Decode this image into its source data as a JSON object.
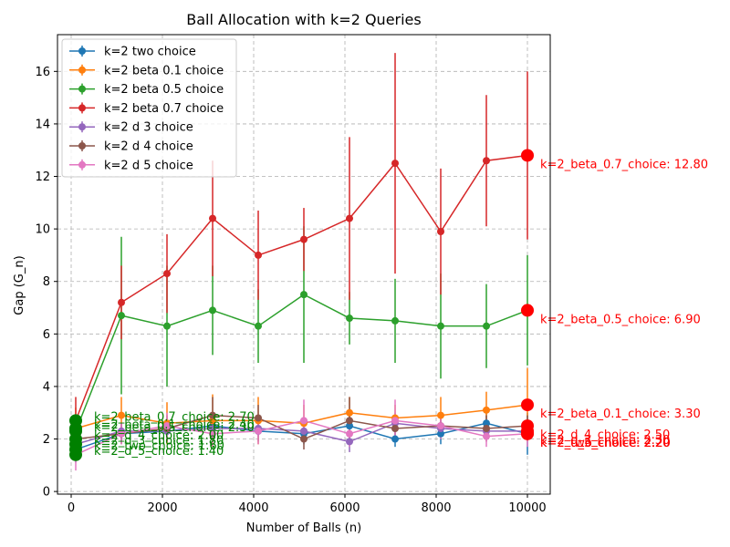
{
  "chart_data": {
    "type": "line",
    "title": "Ball Allocation with k=2 Queries",
    "xlabel": "Number of Balls (n)",
    "ylabel": "Gap (G_n)",
    "xlim": [
      -300,
      10500
    ],
    "ylim": [
      -0.1,
      17.4
    ],
    "xticks": [
      0,
      2000,
      4000,
      6000,
      8000,
      10000
    ],
    "yticks": [
      0,
      2,
      4,
      6,
      8,
      10,
      12,
      14,
      16
    ],
    "grid": true,
    "legend_position": "upper-left",
    "x": [
      100,
      1100,
      2100,
      3100,
      4100,
      5100,
      6100,
      7100,
      8100,
      9100,
      10000
    ],
    "series": [
      {
        "name": "k=2 two choice",
        "color": "#1f77b4",
        "values": [
          1.6,
          2.2,
          2.3,
          2.5,
          2.3,
          2.2,
          2.5,
          2.0,
          2.2,
          2.6,
          2.2
        ],
        "err": [
          0.5,
          0.3,
          0.4,
          0.5,
          0.4,
          0.4,
          0.5,
          0.3,
          0.4,
          0.5,
          0.8
        ],
        "end_label": "k=2_two_choice: 2.20",
        "start_label": "k=2_two_choice: 1.60"
      },
      {
        "name": "k=2 beta 0.1 choice",
        "color": "#ff7f0e",
        "values": [
          2.4,
          2.9,
          2.6,
          2.7,
          2.7,
          2.6,
          3.0,
          2.8,
          2.9,
          3.1,
          3.3
        ],
        "err": [
          0.8,
          0.7,
          0.8,
          1.0,
          0.9,
          0.7,
          0.6,
          0.5,
          0.7,
          0.7,
          1.4
        ],
        "end_label": "k=2_beta_0.1_choice: 3.30",
        "start_label": "k=2_beta_0.1_choice: 2.40"
      },
      {
        "name": "k=2 beta 0.5 choice",
        "color": "#2ca02c",
        "values": [
          2.3,
          6.7,
          6.3,
          6.9,
          6.3,
          7.5,
          6.6,
          6.5,
          6.3,
          6.3,
          6.9
        ],
        "err": [
          0.6,
          3.0,
          2.3,
          1.7,
          1.4,
          2.6,
          1.0,
          1.6,
          2.0,
          1.6,
          2.1
        ],
        "end_label": "k=2_beta_0.5_choice: 6.90",
        "start_label": "k=2_beta_0.5_choice: 2.30"
      },
      {
        "name": "k=2 beta 0.7 choice",
        "color": "#d62728",
        "values": [
          2.7,
          7.2,
          8.3,
          10.4,
          9.0,
          9.6,
          10.4,
          12.5,
          9.9,
          12.6,
          12.8
        ],
        "err": [
          0.9,
          1.4,
          1.5,
          2.2,
          1.7,
          1.2,
          3.1,
          4.2,
          2.4,
          2.5,
          3.2
        ],
        "end_label": "k=2_beta_0.7_choice: 12.80",
        "start_label": "k=2_beta_0.7_choice: 2.70"
      },
      {
        "name": "k=2 d 3 choice",
        "color": "#9467bd",
        "values": [
          1.8,
          2.3,
          2.3,
          2.4,
          2.4,
          2.3,
          1.9,
          2.6,
          2.4,
          2.3,
          2.3
        ],
        "err": [
          0.4,
          0.3,
          0.3,
          0.4,
          0.3,
          0.3,
          0.4,
          0.4,
          0.3,
          0.3,
          0.3
        ],
        "end_label": "k=2_d_3_choice: 2.30",
        "start_label": "k=2_d_3_choice: 1.80"
      },
      {
        "name": "k=2 d 4 choice",
        "color": "#8c564b",
        "values": [
          2.0,
          2.2,
          2.4,
          2.9,
          2.8,
          2.0,
          2.7,
          2.4,
          2.5,
          2.4,
          2.5
        ],
        "err": [
          0.5,
          0.4,
          0.5,
          0.7,
          0.5,
          0.4,
          0.9,
          0.5,
          0.4,
          0.5,
          0.4
        ],
        "end_label": "k=2_d_4_choice: 2.50",
        "start_label": "k=2_d_4_choice: 2.00"
      },
      {
        "name": "k=2 d 5 choice",
        "color": "#e377c2",
        "values": [
          1.4,
          2.2,
          2.5,
          2.2,
          2.3,
          2.7,
          2.2,
          2.7,
          2.5,
          2.1,
          2.2
        ],
        "err": [
          0.6,
          0.4,
          0.5,
          0.5,
          0.5,
          0.8,
          0.5,
          0.8,
          0.5,
          0.4,
          0.5
        ],
        "end_label": "k=2_d_5_choice: 2.20",
        "start_label": "k=2_d_5_choice: 1.40"
      }
    ]
  }
}
